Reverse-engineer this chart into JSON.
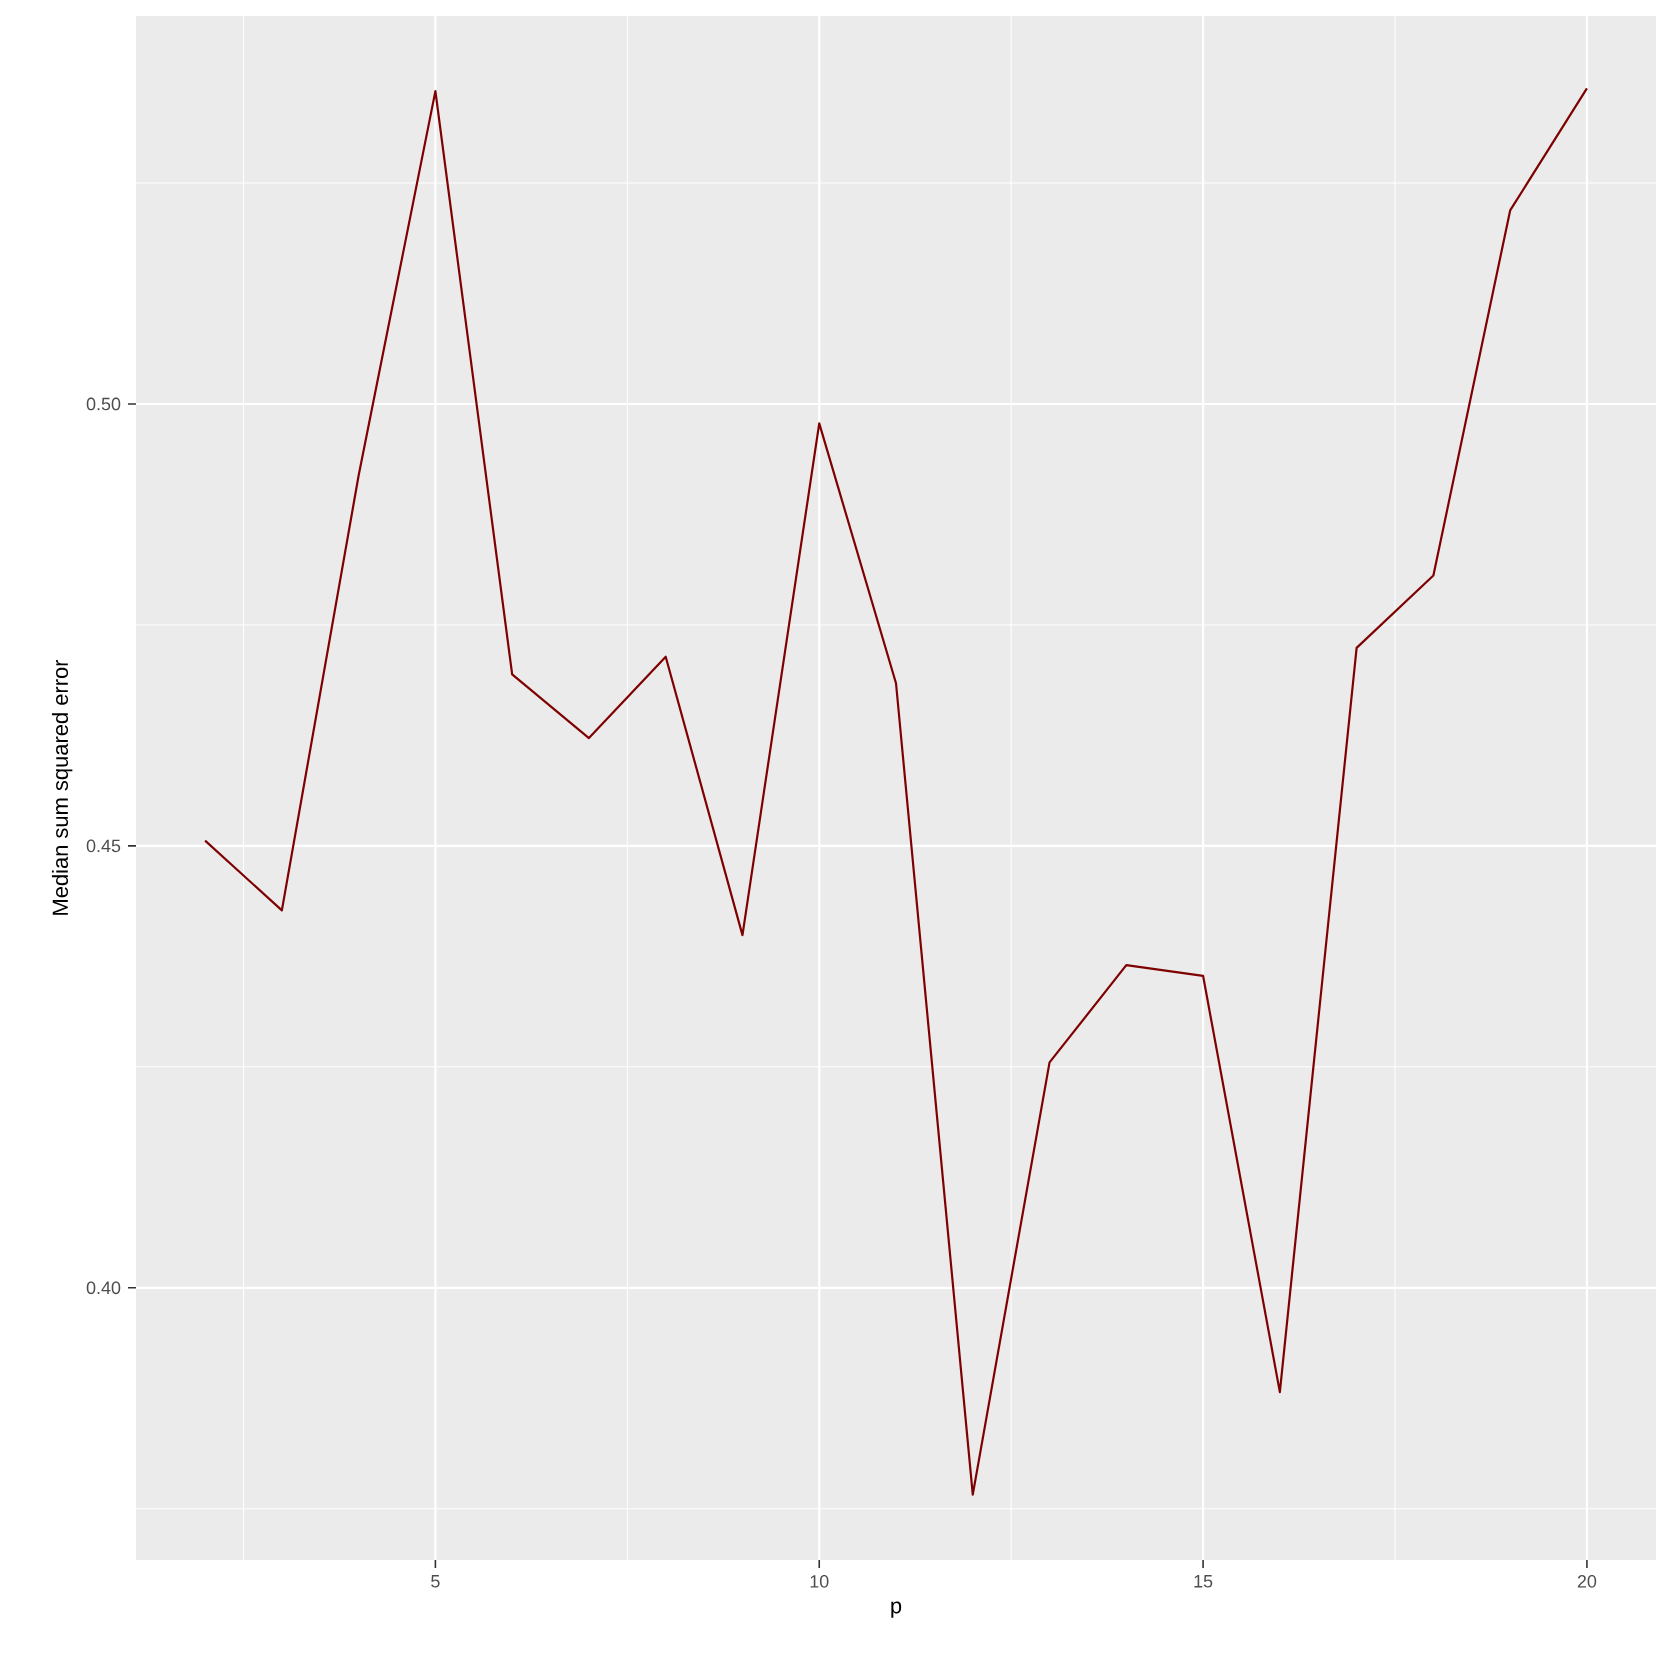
{
  "chart_data": {
    "type": "line",
    "xlabel": "p",
    "ylabel": "Median sum squared error",
    "x": [
      2,
      3,
      4,
      5,
      6,
      7,
      8,
      9,
      10,
      11,
      12,
      13,
      14,
      15,
      16,
      17,
      18,
      19,
      20
    ],
    "series": [
      {
        "color": "#7f0000",
        "values": [
          0.4506,
          0.4427,
          0.4919,
          0.5354,
          0.4694,
          0.4622,
          0.4714,
          0.4399,
          0.4978,
          0.4684,
          0.3766,
          0.4255,
          0.4365,
          0.4353,
          0.3882,
          0.4724,
          0.4806,
          0.5219,
          0.5357
        ]
      }
    ],
    "xlim": [
      1.1,
      20.9
    ],
    "ylim": [
      0.3692,
      0.5439
    ],
    "xticks": [
      {
        "value": 2.5,
        "label": null
      },
      5,
      {
        "value": 7.5,
        "label": null
      },
      10,
      {
        "value": 12.5,
        "label": null
      },
      15,
      {
        "value": 17.5,
        "label": null
      },
      20
    ],
    "yticks": [
      {
        "value": 0.375,
        "label": null
      },
      {
        "value": 0.4,
        "label": "0.40"
      },
      {
        "value": 0.425,
        "label": null
      },
      {
        "value": 0.45,
        "label": "0.45"
      },
      {
        "value": 0.475,
        "label": null
      },
      {
        "value": 0.5,
        "label": "0.50"
      },
      {
        "value": 0.525,
        "label": null
      }
    ],
    "grid": true,
    "marker": "none",
    "line_style": "solid"
  }
}
